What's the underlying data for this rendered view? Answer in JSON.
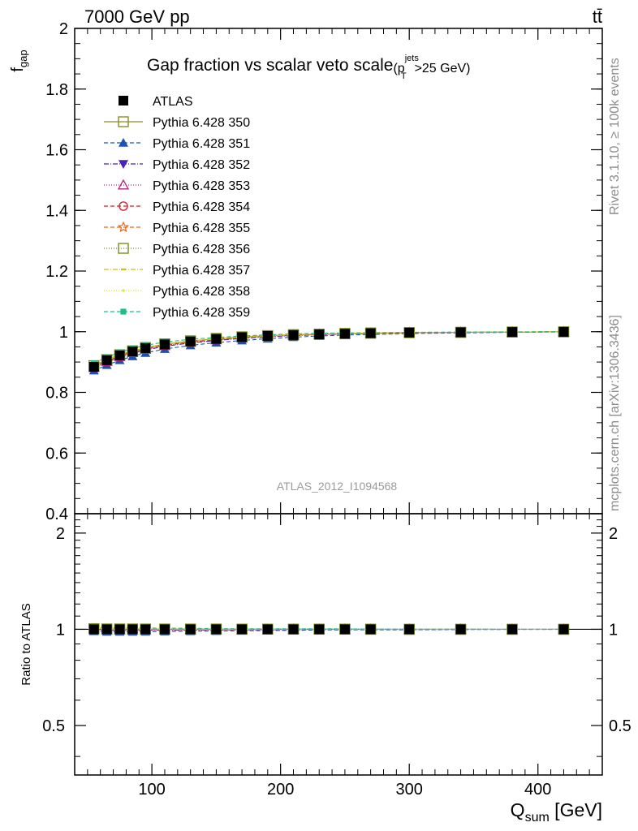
{
  "header": {
    "energy_label": "7000 GeV pp",
    "process_label": "tt̄",
    "side_label_top": "Rivet 3.1.10, ≥ 100k events",
    "side_label_bottom": "mcplots.cern.ch [arXiv:1306.3436]",
    "watermark": "ATLAS_2012_I1094568"
  },
  "chart_data": [
    {
      "type": "scatter",
      "panel": "main",
      "title": "Gap fraction vs scalar veto scale",
      "title_suffix": {
        "open": "(p",
        "sup": "jets",
        "sub": "T",
        "tail": ">25 GeV)"
      },
      "ylabel": {
        "main": "f",
        "sub": "gap"
      },
      "xlim": [
        40,
        450
      ],
      "ylim": [
        0.4,
        2.0
      ],
      "yticks": [
        0.4,
        0.6,
        0.8,
        1,
        1.2,
        1.4,
        1.6,
        1.8,
        2
      ],
      "ytick_labels": [
        "0.4",
        "0.6",
        "0.8",
        "1",
        "1.2",
        "1.4",
        "1.6",
        "1.8",
        "2"
      ],
      "legend_position": "top-left",
      "x": [
        55,
        65,
        75,
        85,
        95,
        110,
        130,
        150,
        170,
        190,
        210,
        230,
        250,
        270,
        300,
        340,
        380,
        420
      ],
      "series": [
        {
          "name": "ATLAS",
          "color": "#000000",
          "marker": "filled-square",
          "dash": "none",
          "draw_line": false,
          "values": [
            0.884,
            0.906,
            0.922,
            0.935,
            0.946,
            0.958,
            0.968,
            0.976,
            0.982,
            0.986,
            0.989,
            0.991,
            0.993,
            0.995,
            0.997,
            0.998,
            0.999,
            0.9995
          ]
        },
        {
          "name": "Pythia 6.428 350",
          "color": "#8c8c1e",
          "marker": "open-square",
          "dash": "solid",
          "draw_line": true,
          "values": [
            0.888,
            0.908,
            0.924,
            0.937,
            0.947,
            0.959,
            0.969,
            0.977,
            0.983,
            0.987,
            0.99,
            0.992,
            0.994,
            0.995,
            0.997,
            0.998,
            0.999,
            0.9995
          ]
        },
        {
          "name": "Pythia 6.428 351",
          "color": "#1f4fb4",
          "marker": "filled-triangle-up",
          "dash": "5,3",
          "draw_line": true,
          "values": [
            0.872,
            0.89,
            0.906,
            0.919,
            0.93,
            0.943,
            0.955,
            0.964,
            0.971,
            0.977,
            0.982,
            0.986,
            0.989,
            0.991,
            0.994,
            0.996,
            0.998,
            0.999
          ]
        },
        {
          "name": "Pythia 6.428 352",
          "color": "#4b22b4",
          "marker": "filled-triangle-down",
          "dash": "6,2,1,2",
          "draw_line": true,
          "values": [
            0.88,
            0.9,
            0.916,
            0.929,
            0.94,
            0.952,
            0.963,
            0.971,
            0.978,
            0.983,
            0.987,
            0.99,
            0.992,
            0.994,
            0.996,
            0.998,
            0.999,
            0.9995
          ]
        },
        {
          "name": "Pythia 6.428 353",
          "color": "#b4237d",
          "marker": "open-triangle-up",
          "dash": "1,2",
          "draw_line": true,
          "values": [
            0.882,
            0.902,
            0.918,
            0.931,
            0.942,
            0.954,
            0.965,
            0.973,
            0.979,
            0.984,
            0.988,
            0.991,
            0.993,
            0.995,
            0.997,
            0.998,
            0.999,
            0.9995
          ]
        },
        {
          "name": "Pythia 6.428 354",
          "color": "#d21e28",
          "marker": "open-circle",
          "dash": "5,3",
          "draw_line": true,
          "values": [
            0.884,
            0.904,
            0.92,
            0.933,
            0.944,
            0.956,
            0.966,
            0.974,
            0.98,
            0.985,
            0.989,
            0.991,
            0.993,
            0.995,
            0.997,
            0.998,
            0.999,
            0.9995
          ]
        },
        {
          "name": "Pythia 6.428 355",
          "color": "#eb6414",
          "marker": "open-star",
          "dash": "5,3",
          "draw_line": true,
          "values": [
            0.886,
            0.906,
            0.922,
            0.935,
            0.946,
            0.958,
            0.968,
            0.976,
            0.982,
            0.986,
            0.99,
            0.992,
            0.994,
            0.995,
            0.997,
            0.998,
            0.999,
            0.9995
          ]
        },
        {
          "name": "Pythia 6.428 356",
          "color": "#78901e",
          "marker": "open-square",
          "dash": "1,2",
          "draw_line": true,
          "values": [
            0.888,
            0.908,
            0.924,
            0.937,
            0.948,
            0.96,
            0.97,
            0.978,
            0.983,
            0.987,
            0.99,
            0.992,
            0.994,
            0.996,
            0.997,
            0.998,
            0.999,
            0.9995
          ]
        },
        {
          "name": "Pythia 6.428 357",
          "color": "#d2be14",
          "marker": "dash-point",
          "dash": "6,2,1,2",
          "draw_line": true,
          "values": [
            0.886,
            0.906,
            0.922,
            0.935,
            0.946,
            0.958,
            0.968,
            0.976,
            0.982,
            0.986,
            0.99,
            0.992,
            0.994,
            0.995,
            0.997,
            0.998,
            0.999,
            0.9995
          ]
        },
        {
          "name": "Pythia 6.428 358",
          "color": "#d7e632",
          "marker": "small-point",
          "dash": "1,2",
          "draw_line": true,
          "values": [
            0.89,
            0.91,
            0.926,
            0.939,
            0.949,
            0.961,
            0.971,
            0.978,
            0.984,
            0.988,
            0.991,
            0.993,
            0.995,
            0.996,
            0.998,
            0.999,
            0.9995,
            1.0
          ]
        },
        {
          "name": "Pythia 6.428 359",
          "color": "#1ebe8c",
          "marker": "filled-square-small",
          "dash": "5,3",
          "draw_line": true,
          "values": [
            0.896,
            0.916,
            0.932,
            0.945,
            0.955,
            0.966,
            0.975,
            0.981,
            0.986,
            0.99,
            0.993,
            0.995,
            0.996,
            0.997,
            0.998,
            0.999,
            0.9995,
            1.0
          ]
        }
      ]
    },
    {
      "type": "scatter",
      "panel": "ratio",
      "ylabel": "Ratio to ATLAS",
      "xlabel": {
        "main": "Q",
        "sub": "sum",
        "tail": " [GeV]"
      },
      "xlim": [
        40,
        450
      ],
      "ylim": [
        0.35,
        2.3
      ],
      "log_y": true,
      "xticks": [
        100,
        200,
        300,
        400
      ],
      "xtick_labels": [
        "100",
        "200",
        "300",
        "400"
      ],
      "yticks": [
        0.5,
        1,
        2
      ],
      "ytick_labels": [
        "0.5",
        "1",
        "2"
      ],
      "reference_line": 1
    }
  ]
}
